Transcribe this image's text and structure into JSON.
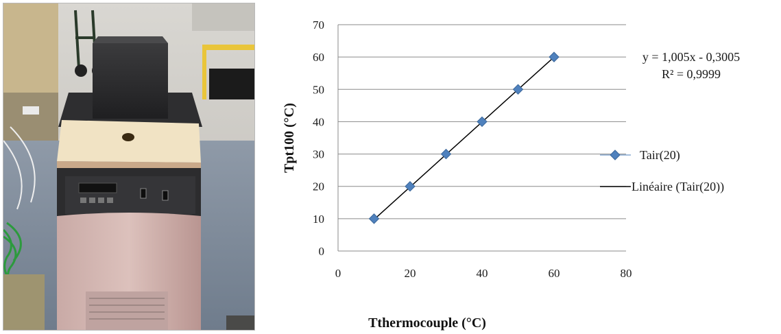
{
  "photo": {
    "subject": "temperature-bath-apparatus"
  },
  "chart_data": {
    "type": "scatter",
    "xlabel": "Tthermocouple (°C)",
    "ylabel": "Tpt100 (°C)",
    "xlim": [
      0,
      80
    ],
    "ylim": [
      0,
      70
    ],
    "x_ticks": [
      "0",
      "20",
      "40",
      "60",
      "80"
    ],
    "y_ticks": [
      "0",
      "10",
      "20",
      "30",
      "40",
      "50",
      "60",
      "70"
    ],
    "grid": "horizontal",
    "legend_placement": "right",
    "series": [
      {
        "name": "Tair(20)",
        "marker": "diamond",
        "color": "#4a7ebb",
        "x": [
          10,
          20,
          30,
          40,
          50,
          60
        ],
        "y": [
          10,
          20,
          30,
          40,
          50,
          60
        ]
      }
    ],
    "trendline": {
      "name": "Linéaire (Tair(20))",
      "slope": 1.005,
      "intercept": -0.3005,
      "x_range": [
        10,
        60
      ],
      "color": "#000000",
      "equation": "y = 1,005x - 0,3005",
      "r_squared": "R² = 0,9999"
    }
  }
}
